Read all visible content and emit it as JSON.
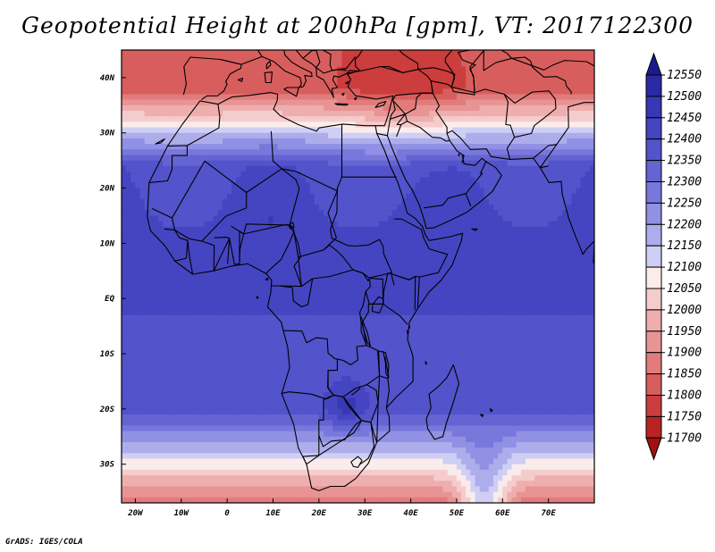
{
  "title": "Geopotential Height at 200hPa [gpm], VT: 2017122300",
  "credit": "GrADS: IGES/COLA",
  "map": {
    "lon_range": [
      -23,
      80
    ],
    "lat_range": [
      -37,
      45
    ],
    "lon_ticks": [
      {
        "v": -20,
        "label": "20W"
      },
      {
        "v": -10,
        "label": "10W"
      },
      {
        "v": 0,
        "label": "0"
      },
      {
        "v": 10,
        "label": "10E"
      },
      {
        "v": 20,
        "label": "20E"
      },
      {
        "v": 30,
        "label": "30E"
      },
      {
        "v": 40,
        "label": "40E"
      },
      {
        "v": 50,
        "label": "50E"
      },
      {
        "v": 60,
        "label": "60E"
      },
      {
        "v": 70,
        "label": "70E"
      }
    ],
    "lat_ticks": [
      {
        "v": 40,
        "label": "40N"
      },
      {
        "v": 30,
        "label": "30N"
      },
      {
        "v": 20,
        "label": "20N"
      },
      {
        "v": 10,
        "label": "10N"
      },
      {
        "v": 0,
        "label": "EQ"
      },
      {
        "v": -10,
        "label": "10S"
      },
      {
        "v": -20,
        "label": "20S"
      },
      {
        "v": -30,
        "label": "30S"
      }
    ]
  },
  "colorbar": {
    "levels": [
      12550,
      12500,
      12450,
      12400,
      12350,
      12300,
      12250,
      12200,
      12150,
      12100,
      12050,
      12000,
      11950,
      11900,
      11850,
      11800,
      11750,
      11700
    ],
    "colors": [
      "#1b1b8e",
      "#2a2aa5",
      "#3838b6",
      "#4545c2",
      "#5353cb",
      "#6464d3",
      "#7878dc",
      "#9090e4",
      "#adadec",
      "#cfcff5",
      "#fbecec",
      "#f5cccc",
      "#efaeae",
      "#e89494",
      "#e27b7b",
      "#d85e5e",
      "#cc3d3d",
      "#b92323",
      "#a21010"
    ]
  }
}
